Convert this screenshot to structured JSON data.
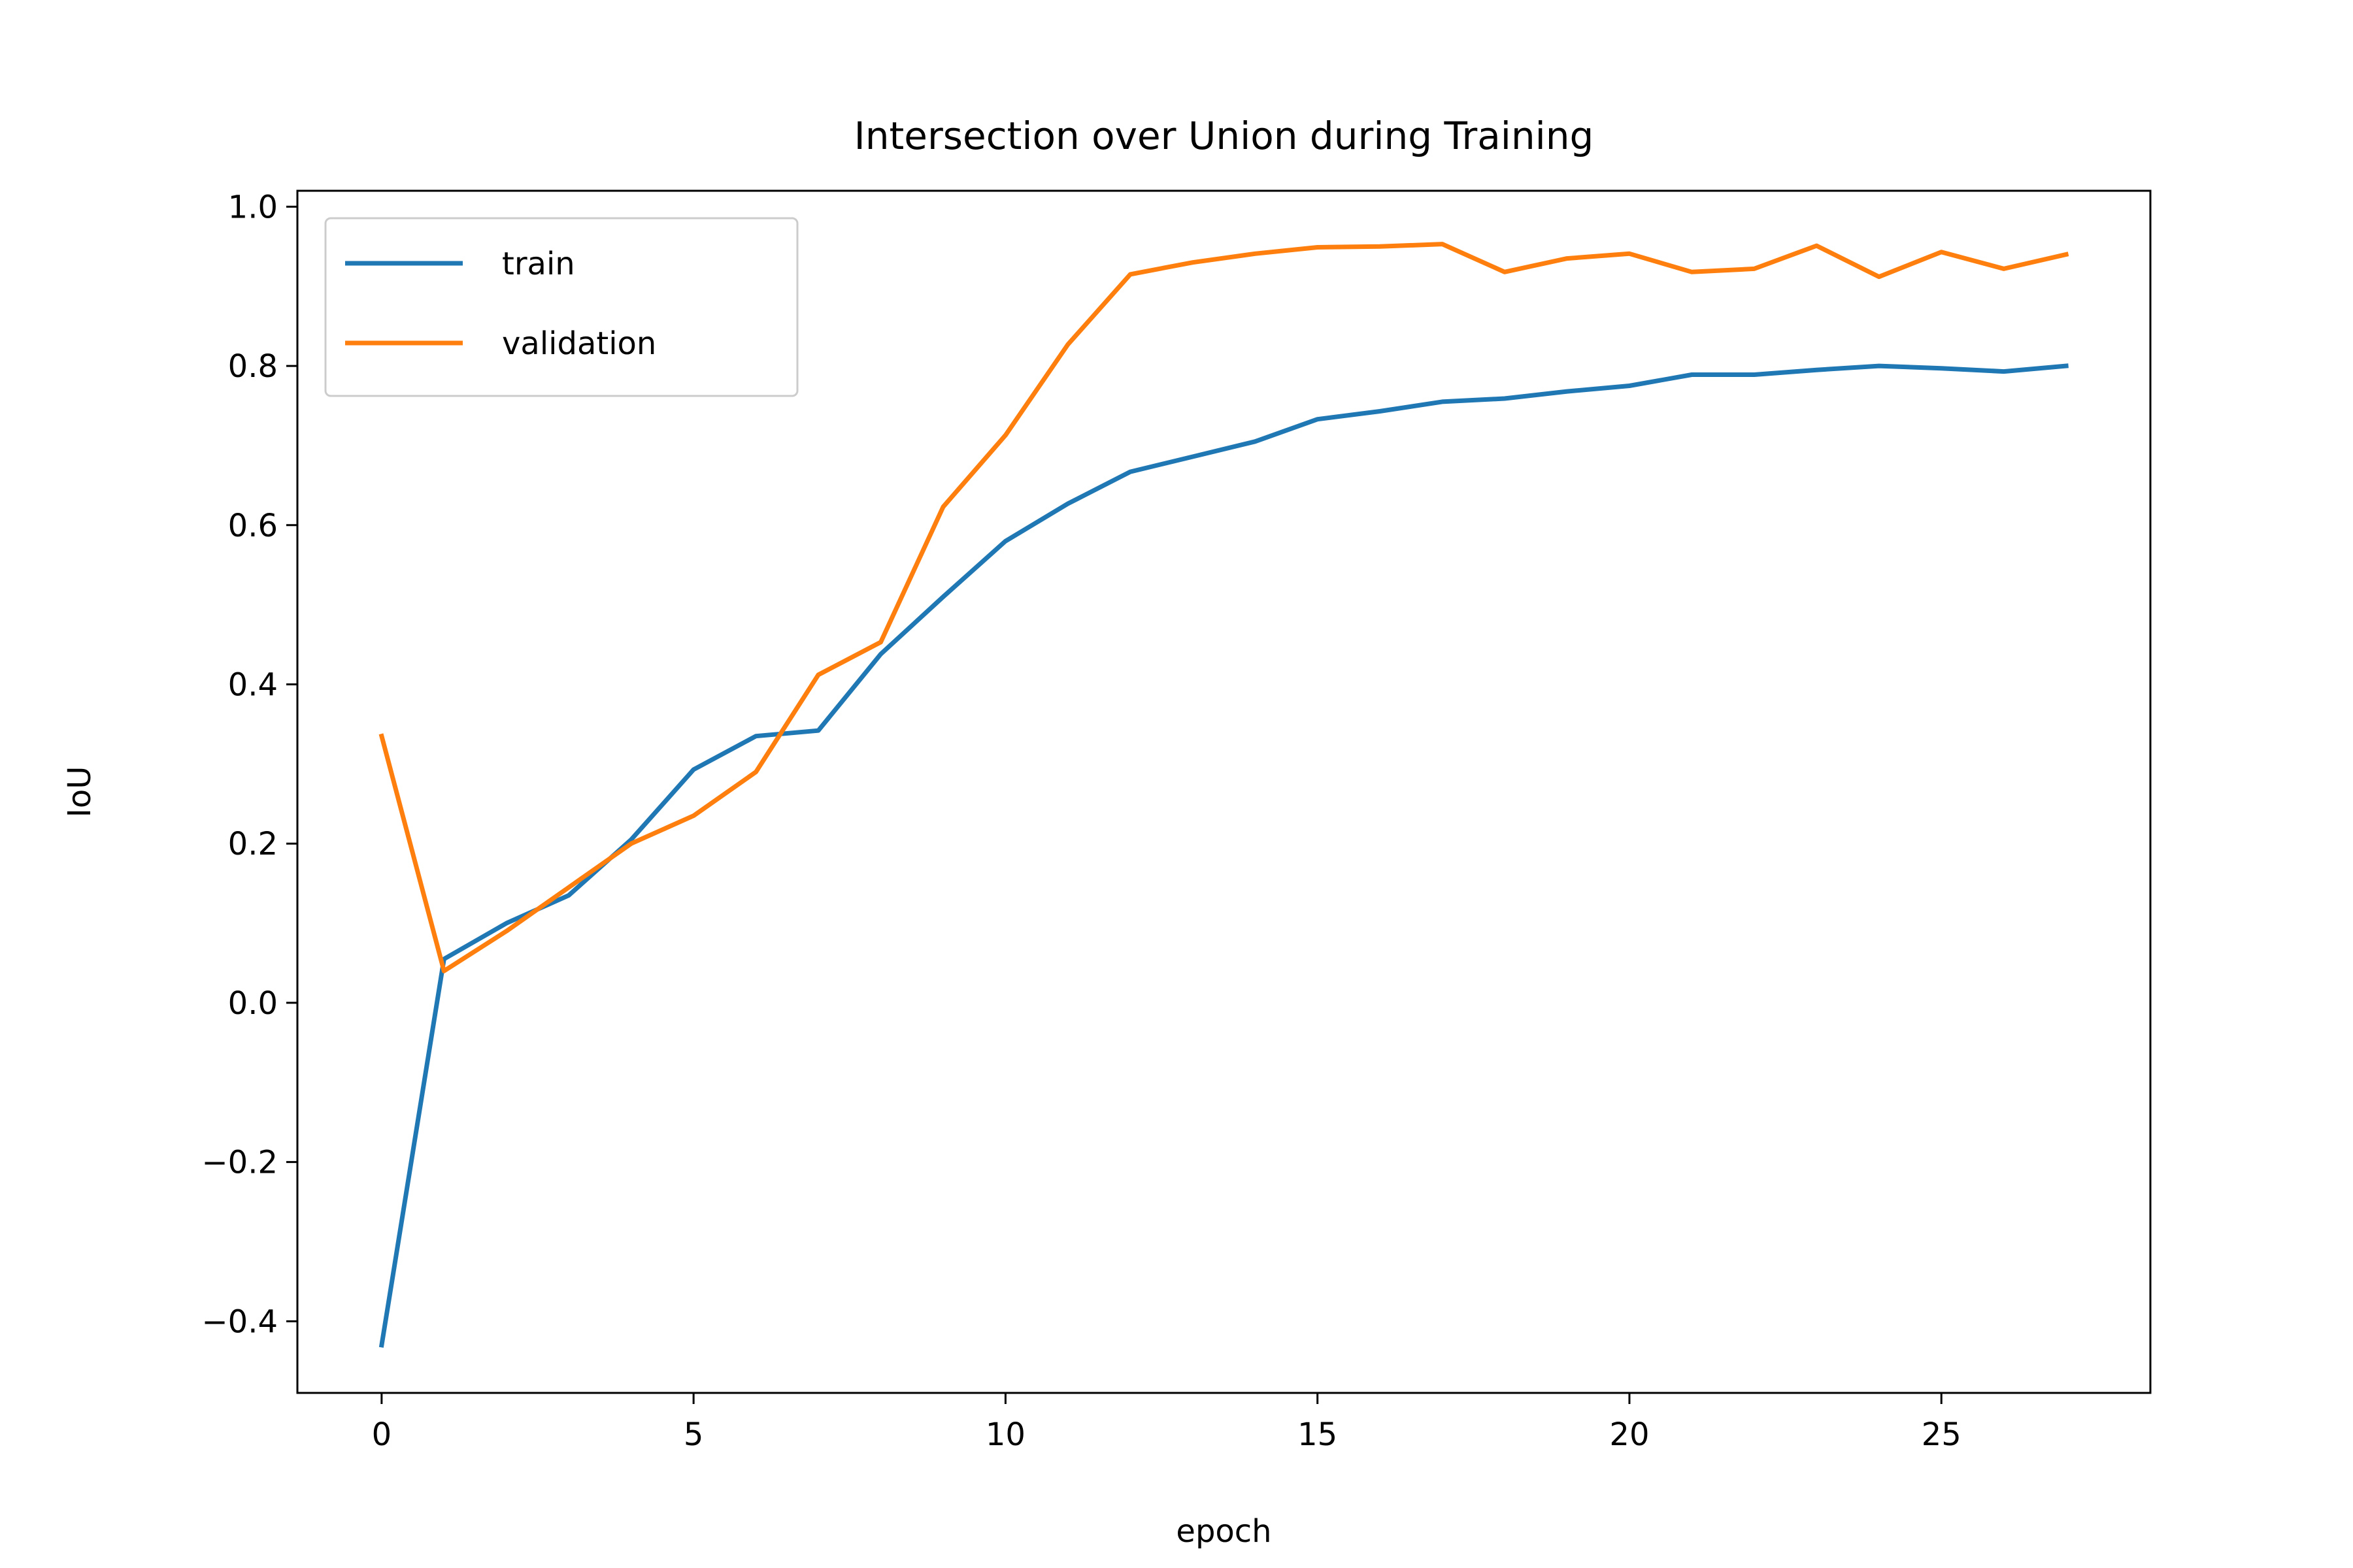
{
  "chart_data": {
    "type": "line",
    "title": "Intersection over Union during Training",
    "xlabel": "epoch",
    "ylabel": "IoU",
    "xlim": [
      -1.35,
      28.35
    ],
    "ylim": [
      -0.49,
      1.02
    ],
    "xticks": [
      0,
      5,
      10,
      15,
      20,
      25
    ],
    "xtick_labels": [
      "0",
      "5",
      "10",
      "15",
      "20",
      "25"
    ],
    "yticks": [
      -0.4,
      -0.2,
      0.0,
      0.2,
      0.4,
      0.6,
      0.8,
      1.0
    ],
    "ytick_labels": [
      "−0.4",
      "−0.2",
      "0.0",
      "0.2",
      "0.4",
      "0.6",
      "0.8",
      "1.0"
    ],
    "grid": false,
    "legend_position": "upper left",
    "x": [
      0,
      1,
      2,
      3,
      4,
      5,
      6,
      7,
      8,
      9,
      10,
      11,
      12,
      13,
      14,
      15,
      16,
      17,
      18,
      19,
      20,
      21,
      22,
      23,
      24,
      25,
      26,
      27
    ],
    "series": [
      {
        "name": "train",
        "color": "#1f77b4",
        "values": [
          -0.43,
          0.055,
          0.1,
          0.135,
          0.205,
          0.293,
          0.335,
          0.342,
          0.438,
          0.51,
          0.58,
          0.627,
          0.667,
          0.686,
          0.705,
          0.733,
          0.743,
          0.755,
          0.759,
          0.768,
          0.775,
          0.789,
          0.789,
          0.795,
          0.8,
          0.797,
          0.793,
          0.8
        ]
      },
      {
        "name": "validation",
        "color": "#ff7f0e",
        "values": [
          0.335,
          0.04,
          0.09,
          0.145,
          0.2,
          0.235,
          0.29,
          0.412,
          0.453,
          0.623,
          0.713,
          0.827,
          0.915,
          0.93,
          0.941,
          0.949,
          0.95,
          0.953,
          0.918,
          0.935,
          0.941,
          0.918,
          0.922,
          0.951,
          0.912,
          0.943,
          0.922,
          0.94
        ]
      }
    ]
  }
}
